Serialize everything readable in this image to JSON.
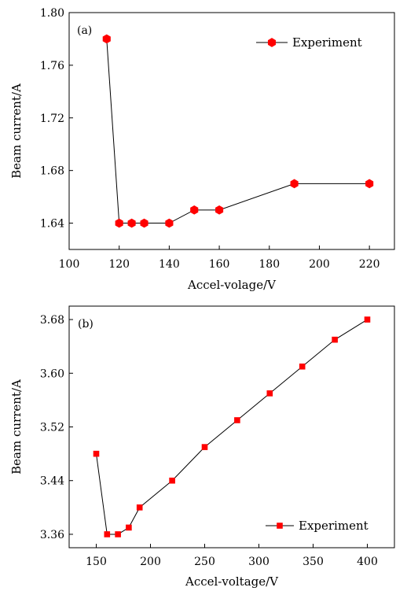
{
  "chart_data": [
    {
      "type": "line",
      "panel_label": "(a)",
      "xlabel": "Accel-volage/V",
      "ylabel": "Beam current/A",
      "xlim": [
        100,
        230
      ],
      "ylim": [
        1.62,
        1.8
      ],
      "xticks": [
        100,
        120,
        140,
        160,
        180,
        200,
        220
      ],
      "yticks": [
        1.64,
        1.68,
        1.72,
        1.76,
        1.8
      ],
      "ytick_labels": [
        "1.64",
        "1.68",
        "1.72",
        "1.76",
        "1.80"
      ],
      "legend_position": "top-right",
      "marker": "hexagon",
      "color": "#ff0000",
      "series": [
        {
          "name": "Experiment",
          "x": [
            115,
            120,
            125,
            130,
            140,
            150,
            160,
            190,
            220
          ],
          "y": [
            1.78,
            1.64,
            1.64,
            1.64,
            1.64,
            1.65,
            1.65,
            1.67,
            1.67
          ]
        }
      ]
    },
    {
      "type": "line",
      "panel_label": "(b)",
      "xlabel": "Accel-voltage/V",
      "ylabel": "Beam current/A",
      "xlim": [
        125,
        425
      ],
      "ylim": [
        3.34,
        3.7
      ],
      "xticks": [
        150,
        200,
        250,
        300,
        350,
        400
      ],
      "yticks": [
        3.36,
        3.44,
        3.52,
        3.6,
        3.68
      ],
      "ytick_labels": [
        "3.36",
        "3.44",
        "3.52",
        "3.60",
        "3.68"
      ],
      "legend_position": "bottom-right",
      "marker": "square",
      "color": "#ff0000",
      "series": [
        {
          "name": "Experiment",
          "x": [
            150,
            160,
            170,
            180,
            190,
            220,
            250,
            280,
            310,
            340,
            370,
            400
          ],
          "y": [
            3.48,
            3.36,
            3.36,
            3.37,
            3.4,
            3.44,
            3.49,
            3.53,
            3.57,
            3.61,
            3.65,
            3.68
          ]
        }
      ]
    }
  ]
}
